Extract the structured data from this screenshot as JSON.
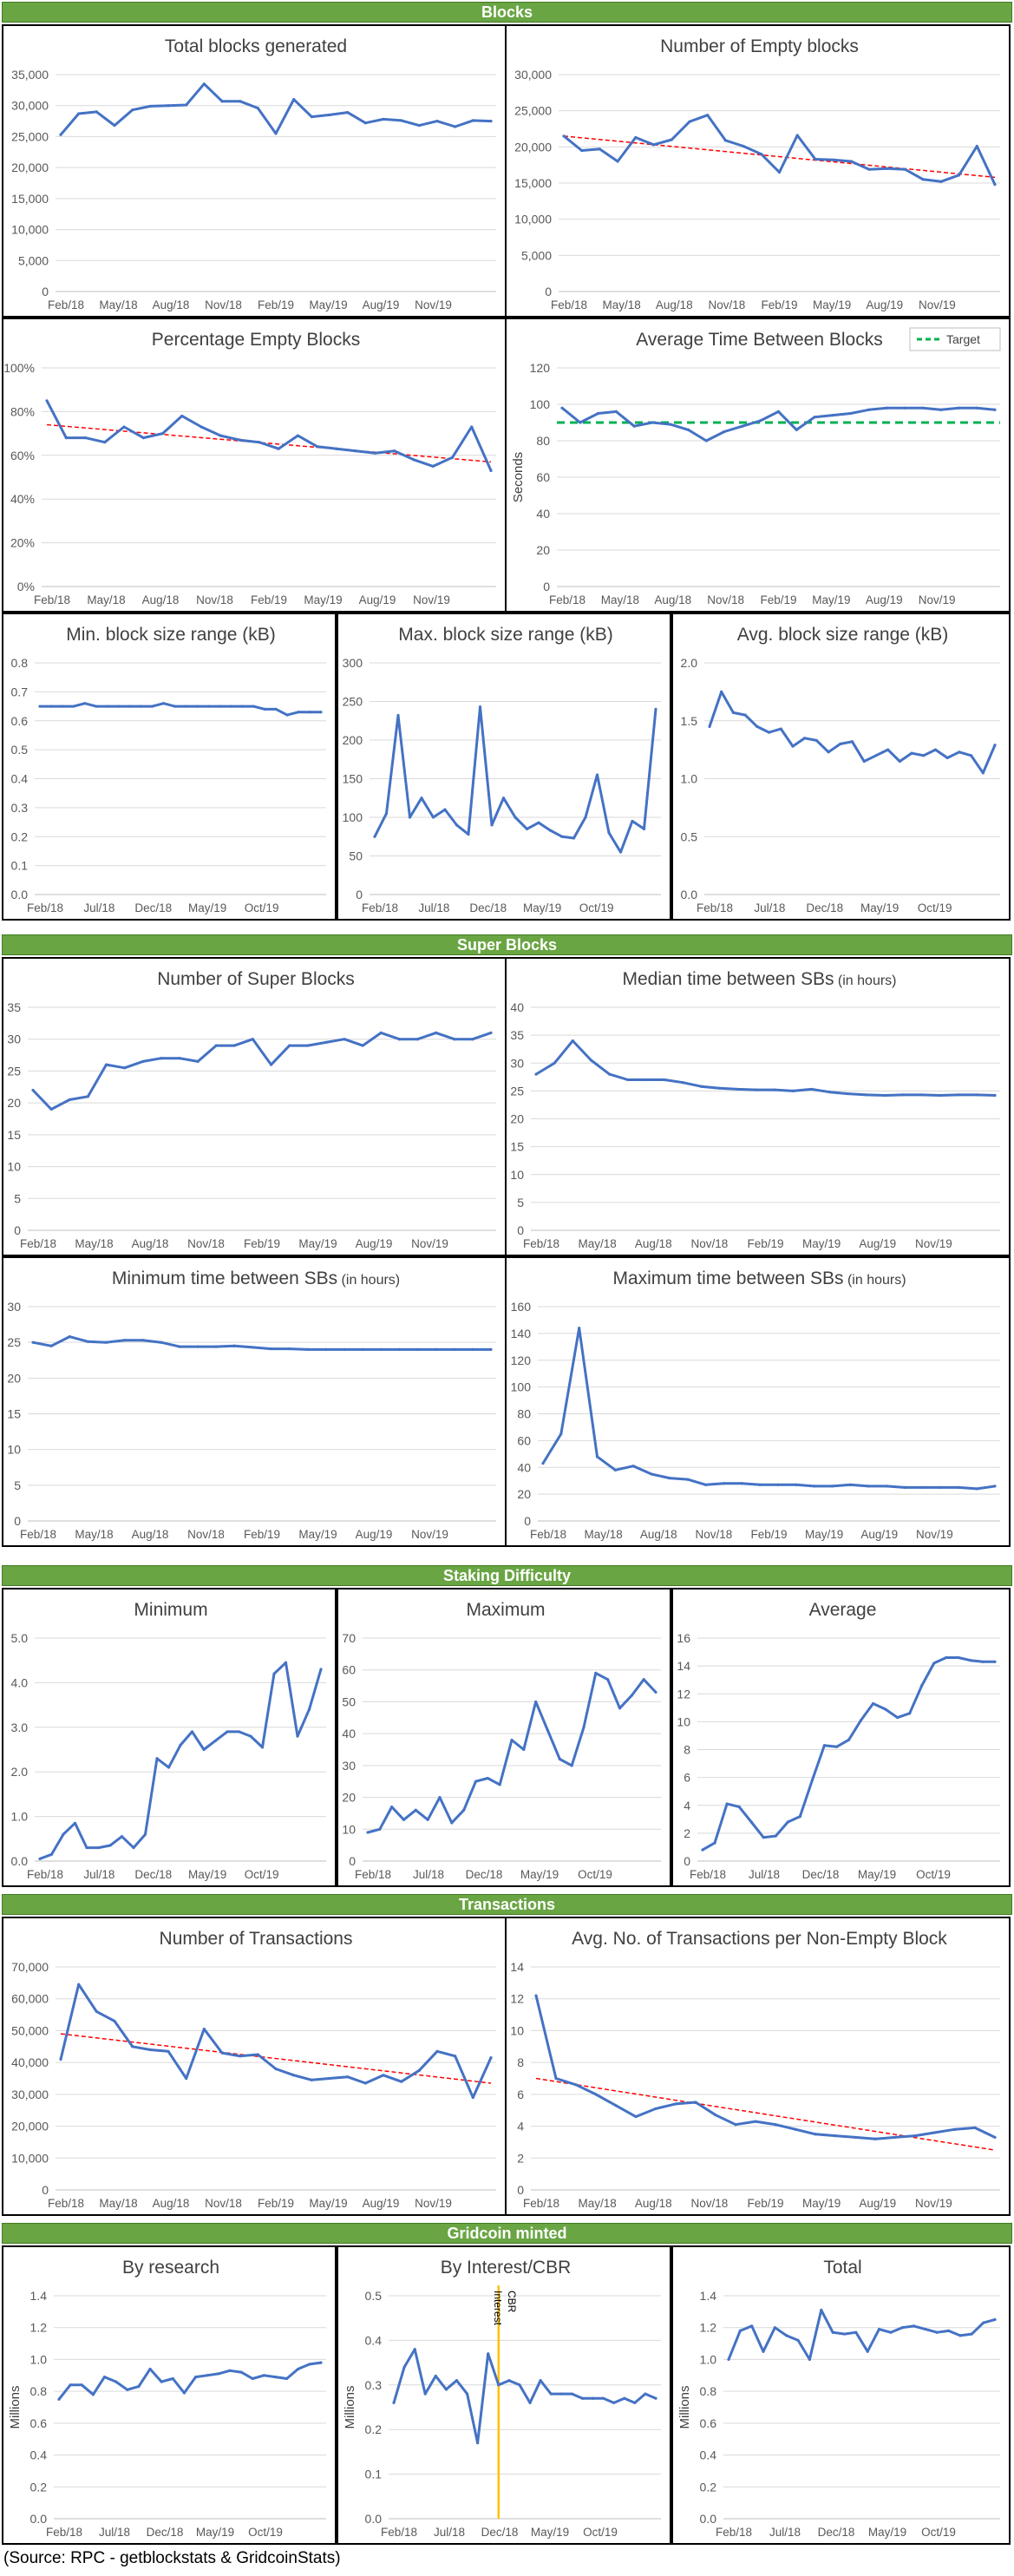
{
  "sections": {
    "blocks": "Blocks",
    "super_blocks": "Super Blocks",
    "staking": "Staking Difficulty",
    "transactions": "Transactions",
    "minted": "Gridcoin minted"
  },
  "source": "(Source: RPC - getblockstats & GridcoinStats)",
  "colors": {
    "line": "#4472c4",
    "trend": "#ff0000",
    "target": "#00b050",
    "marker": "#ffc000",
    "grid": "#d9d9d9",
    "header": "#6aa544"
  },
  "chart_data": [
    {
      "id": "total-blocks",
      "type": "line",
      "title": "Total blocks generated",
      "title_suffix": "",
      "xticks": [
        "Feb/18",
        "May/18",
        "Aug/18",
        "Nov/18",
        "Feb/19",
        "May/19",
        "Aug/19",
        "Nov/19"
      ],
      "ylim": [
        0,
        35000
      ],
      "yticks": [
        "0",
        "5,000",
        "10,000",
        "15,000",
        "20,000",
        "25,000",
        "30,000",
        "35,000"
      ],
      "series": [
        {
          "values": [
            25300,
            28700,
            29000,
            26800,
            29300,
            29900,
            30000,
            30100,
            33500,
            30700,
            30700,
            29600,
            25500,
            31000,
            28200,
            28500,
            28900,
            27200,
            27800,
            27600,
            26800,
            27500,
            26600,
            27600,
            27500
          ]
        }
      ]
    },
    {
      "id": "empty-blocks",
      "type": "line",
      "title": "Number of Empty blocks",
      "title_suffix": "",
      "xticks": [
        "Feb/18",
        "May/18",
        "Aug/18",
        "Nov/18",
        "Feb/19",
        "May/19",
        "Aug/19",
        "Nov/19"
      ],
      "ylim": [
        0,
        30000
      ],
      "yticks": [
        "0",
        "5,000",
        "10,000",
        "15,000",
        "20,000",
        "25,000",
        "30,000"
      ],
      "series": [
        {
          "values": [
            21500,
            19500,
            19700,
            18000,
            21300,
            20300,
            21000,
            23500,
            24400,
            20900,
            20100,
            19000,
            16500,
            21600,
            18300,
            18200,
            18000,
            16900,
            17000,
            16900,
            15500,
            15200,
            16100,
            20100,
            14800
          ]
        }
      ],
      "trend": [
        21500,
        15800
      ]
    },
    {
      "id": "pct-empty",
      "type": "line",
      "title": "Percentage Empty Blocks",
      "title_suffix": "",
      "xticks": [
        "Feb/18",
        "May/18",
        "Aug/18",
        "Nov/18",
        "Feb/19",
        "May/19",
        "Aug/19",
        "Nov/19"
      ],
      "ylim": [
        0,
        100
      ],
      "yticks": [
        "0%",
        "20%",
        "40%",
        "60%",
        "80%",
        "100%"
      ],
      "series": [
        {
          "values": [
            85,
            68,
            68,
            66,
            73,
            68,
            70,
            78,
            73,
            69,
            67,
            66,
            63,
            69,
            64,
            63,
            62,
            61,
            62,
            58,
            55,
            59,
            73,
            53
          ]
        }
      ],
      "trend": [
        74,
        57
      ]
    },
    {
      "id": "avg-time",
      "type": "line",
      "title": "Average Time Between Blocks",
      "title_suffix": "",
      "xticks": [
        "Feb/18",
        "May/18",
        "Aug/18",
        "Nov/18",
        "Feb/19",
        "May/19",
        "Aug/19",
        "Nov/19"
      ],
      "ylim": [
        0,
        120
      ],
      "yticks": [
        "0",
        "20",
        "40",
        "60",
        "80",
        "100",
        "120"
      ],
      "ylabel": "Seconds",
      "legend": "Target",
      "target": 90,
      "series": [
        {
          "values": [
            98,
            90,
            95,
            96,
            88,
            90,
            89,
            86,
            80,
            85,
            88,
            91,
            96,
            86,
            93,
            94,
            95,
            97,
            98,
            98,
            98,
            97,
            98,
            98,
            97
          ]
        }
      ]
    },
    {
      "id": "min-block-size",
      "type": "line",
      "title": "Min. block size range (kB)",
      "title_suffix": "",
      "xticks": [
        "Feb/18",
        "Jul/18",
        "Dec/18",
        "May/19",
        "Oct/19"
      ],
      "ylim": [
        0,
        0.8
      ],
      "yticks": [
        "0.0",
        "0.1",
        "0.2",
        "0.3",
        "0.4",
        "0.5",
        "0.6",
        "0.7",
        "0.8"
      ],
      "series": [
        {
          "values": [
            0.65,
            0.65,
            0.65,
            0.65,
            0.66,
            0.65,
            0.65,
            0.65,
            0.65,
            0.65,
            0.65,
            0.66,
            0.65,
            0.65,
            0.65,
            0.65,
            0.65,
            0.65,
            0.65,
            0.65,
            0.64,
            0.64,
            0.62,
            0.63,
            0.63,
            0.63
          ]
        }
      ]
    },
    {
      "id": "max-block-size",
      "type": "line",
      "title": "Max. block size range (kB)",
      "title_suffix": "",
      "xticks": [
        "Feb/18",
        "Jul/18",
        "Dec/18",
        "May/19",
        "Oct/19"
      ],
      "ylim": [
        0,
        300
      ],
      "yticks": [
        "0",
        "50",
        "100",
        "150",
        "200",
        "250",
        "300"
      ],
      "series": [
        {
          "values": [
            75,
            105,
            232,
            100,
            125,
            100,
            110,
            90,
            78,
            243,
            90,
            125,
            100,
            85,
            93,
            83,
            75,
            73,
            100,
            155,
            80,
            55,
            95,
            85,
            240
          ]
        }
      ]
    },
    {
      "id": "avg-block-size",
      "type": "line",
      "title": "Avg. block size range (kB)",
      "title_suffix": "",
      "xticks": [
        "Feb/18",
        "Jul/18",
        "Dec/18",
        "May/19",
        "Oct/19"
      ],
      "ylim": [
        0,
        2.0
      ],
      "yticks": [
        "0.0",
        "0.5",
        "1.0",
        "1.5",
        "2.0"
      ],
      "series": [
        {
          "values": [
            1.45,
            1.75,
            1.57,
            1.55,
            1.45,
            1.4,
            1.43,
            1.28,
            1.35,
            1.33,
            1.23,
            1.3,
            1.32,
            1.15,
            1.2,
            1.25,
            1.15,
            1.22,
            1.2,
            1.25,
            1.18,
            1.23,
            1.2,
            1.05,
            1.29
          ]
        }
      ]
    },
    {
      "id": "super-blocks",
      "type": "line",
      "title": "Number of Super Blocks",
      "title_suffix": "",
      "xticks": [
        "Feb/18",
        "May/18",
        "Aug/18",
        "Nov/18",
        "Feb/19",
        "May/19",
        "Aug/19",
        "Nov/19"
      ],
      "ylim": [
        0,
        35
      ],
      "yticks": [
        "0",
        "5",
        "10",
        "15",
        "20",
        "25",
        "30",
        "35"
      ],
      "series": [
        {
          "values": [
            22,
            19,
            20.5,
            21,
            26,
            25.5,
            26.5,
            27,
            27,
            26.5,
            29,
            29,
            30,
            26,
            29,
            29,
            29.5,
            30,
            29,
            31,
            30,
            30,
            31,
            30,
            30,
            31
          ]
        }
      ]
    },
    {
      "id": "median-sb",
      "type": "line",
      "title": "Median time between SBs",
      "title_suffix": "(in hours)",
      "xticks": [
        "Feb/18",
        "May/18",
        "Aug/18",
        "Nov/18",
        "Feb/19",
        "May/19",
        "Aug/19",
        "Nov/19"
      ],
      "ylim": [
        0,
        40
      ],
      "yticks": [
        "0",
        "5",
        "10",
        "15",
        "20",
        "25",
        "30",
        "35",
        "40"
      ],
      "series": [
        {
          "values": [
            28,
            30,
            34,
            30.5,
            28,
            27,
            27,
            27,
            26.5,
            25.8,
            25.5,
            25.3,
            25.2,
            25.2,
            25,
            25.3,
            24.8,
            24.5,
            24.3,
            24.2,
            24.3,
            24.3,
            24.2,
            24.3,
            24.3,
            24.2
          ]
        }
      ]
    },
    {
      "id": "minimum-sb",
      "type": "line",
      "title": "Minimum time between SBs",
      "title_suffix": "(in hours)",
      "xticks": [
        "Feb/18",
        "May/18",
        "Aug/18",
        "Nov/18",
        "Feb/19",
        "May/19",
        "Aug/19",
        "Nov/19"
      ],
      "ylim": [
        0,
        30
      ],
      "yticks": [
        "0",
        "5",
        "10",
        "15",
        "20",
        "25",
        "30"
      ],
      "series": [
        {
          "values": [
            25,
            24.5,
            25.8,
            25.1,
            25,
            25.3,
            25.3,
            25,
            24.4,
            24.4,
            24.4,
            24.5,
            24.3,
            24.1,
            24.1,
            24,
            24,
            24,
            24,
            24,
            24,
            24,
            24,
            24,
            24,
            24
          ]
        }
      ]
    },
    {
      "id": "maximum-sb",
      "type": "line",
      "title": "Maximum time  between SBs",
      "title_suffix": "(in hours)",
      "xticks": [
        "Feb/18",
        "May/18",
        "Aug/18",
        "Nov/18",
        "Feb/19",
        "May/19",
        "Aug/19",
        "Nov/19"
      ],
      "ylim": [
        0,
        160
      ],
      "yticks": [
        "0",
        "20",
        "40",
        "60",
        "80",
        "100",
        "120",
        "140",
        "160"
      ],
      "series": [
        {
          "values": [
            43,
            65,
            144,
            48,
            38,
            41,
            35,
            32,
            31,
            27,
            28,
            28,
            27,
            27,
            27,
            26,
            26,
            27,
            26,
            26,
            25,
            25,
            25,
            25,
            24,
            26
          ]
        }
      ]
    },
    {
      "id": "stake-minimum",
      "type": "line",
      "title": "Minimum",
      "title_suffix": "",
      "xticks": [
        "Feb/18",
        "Jul/18",
        "Dec/18",
        "May/19",
        "Oct/19"
      ],
      "ylim": [
        0,
        5
      ],
      "yticks": [
        "0.0",
        "1.0",
        "2.0",
        "3.0",
        "4.0",
        "5.0"
      ],
      "series": [
        {
          "values": [
            0.05,
            0.15,
            0.6,
            0.85,
            0.3,
            0.3,
            0.35,
            0.55,
            0.3,
            0.6,
            2.3,
            2.1,
            2.6,
            2.9,
            2.5,
            2.7,
            2.9,
            2.9,
            2.8,
            2.55,
            4.2,
            4.45,
            2.8,
            3.4,
            4.3
          ]
        }
      ]
    },
    {
      "id": "stake-maximum",
      "type": "line",
      "title": "Maximum",
      "title_suffix": "",
      "xticks": [
        "Feb/18",
        "Jul/18",
        "Dec/18",
        "May/19",
        "Oct/19"
      ],
      "ylim": [
        0,
        70
      ],
      "yticks": [
        "0",
        "10",
        "20",
        "30",
        "40",
        "50",
        "60",
        "70"
      ],
      "series": [
        {
          "values": [
            9,
            10,
            17,
            13,
            16,
            13,
            20,
            12,
            16,
            25,
            26,
            24,
            38,
            35,
            50,
            41,
            32,
            30,
            42,
            59,
            57,
            48,
            52,
            57,
            53
          ]
        }
      ]
    },
    {
      "id": "stake-average",
      "type": "line",
      "title": "Average",
      "title_suffix": "",
      "xticks": [
        "Feb/18",
        "Jul/18",
        "Dec/18",
        "May/19",
        "Oct/19"
      ],
      "ylim": [
        0,
        16
      ],
      "yticks": [
        "0",
        "2",
        "4",
        "6",
        "8",
        "10",
        "12",
        "14",
        "16"
      ],
      "series": [
        {
          "values": [
            0.8,
            1.3,
            4.1,
            3.9,
            2.8,
            1.7,
            1.8,
            2.8,
            3.2,
            5.8,
            8.3,
            8.2,
            8.7,
            10.1,
            11.3,
            10.9,
            10.3,
            10.6,
            12.6,
            14.2,
            14.6,
            14.6,
            14.4,
            14.3,
            14.3
          ]
        }
      ]
    },
    {
      "id": "num-transactions",
      "type": "line",
      "title": "Number of Transactions",
      "title_suffix": "",
      "xticks": [
        "Feb/18",
        "May/18",
        "Aug/18",
        "Nov/18",
        "Feb/19",
        "May/19",
        "Aug/19",
        "Nov/19"
      ],
      "ylim": [
        0,
        70000
      ],
      "yticks": [
        "0",
        "10,000",
        "20,000",
        "30,000",
        "40,000",
        "50,000",
        "60,000",
        "70,000"
      ],
      "series": [
        {
          "values": [
            41000,
            64500,
            56000,
            53000,
            45000,
            44000,
            43500,
            35000,
            50500,
            43000,
            42000,
            42500,
            38000,
            36000,
            34500,
            35000,
            35500,
            33500,
            36000,
            34000,
            37500,
            43500,
            42000,
            29000,
            41500
          ]
        }
      ],
      "trend": [
        49000,
        33500
      ]
    },
    {
      "id": "avg-tx-per-block",
      "type": "line",
      "title": "Avg. No. of Transactions per Non-Empty Block",
      "title_suffix": "",
      "xticks": [
        "Feb/18",
        "May/18",
        "Aug/18",
        "Nov/18",
        "Feb/19",
        "May/19",
        "Aug/19",
        "Nov/19"
      ],
      "ylim": [
        0,
        14
      ],
      "yticks": [
        "0",
        "2",
        "4",
        "6",
        "8",
        "10",
        "12",
        "14"
      ],
      "series": [
        {
          "values": [
            12.2,
            7.0,
            6.6,
            6.0,
            5.3,
            4.6,
            5.1,
            5.4,
            5.5,
            4.7,
            4.1,
            4.3,
            4.1,
            3.8,
            3.5,
            3.4,
            3.3,
            3.2,
            3.3,
            3.4,
            3.6,
            3.8,
            3.9,
            3.3
          ]
        }
      ],
      "trend": [
        7.0,
        2.5
      ]
    },
    {
      "id": "by-research",
      "type": "line",
      "title": "By research",
      "title_suffix": "",
      "xticks": [
        "Feb/18",
        "Jul/18",
        "Dec/18",
        "May/19",
        "Oct/19"
      ],
      "ylim": [
        0,
        1.4
      ],
      "yticks": [
        "0.0",
        "0.2",
        "0.4",
        "0.6",
        "0.8",
        "1.0",
        "1.2",
        "1.4"
      ],
      "ylabel": "Millions",
      "series": [
        {
          "values": [
            0.75,
            0.84,
            0.84,
            0.78,
            0.89,
            0.86,
            0.81,
            0.83,
            0.94,
            0.86,
            0.88,
            0.79,
            0.89,
            0.9,
            0.91,
            0.93,
            0.92,
            0.88,
            0.9,
            0.89,
            0.88,
            0.94,
            0.97,
            0.98
          ]
        }
      ]
    },
    {
      "id": "by-interest",
      "type": "line",
      "title": "By Interest/CBR",
      "title_suffix": "",
      "xticks": [
        "Feb/18",
        "Jul/18",
        "Dec/18",
        "May/19",
        "Oct/19"
      ],
      "ylim": [
        0,
        0.5
      ],
      "yticks": [
        "0.0",
        "0.1",
        "0.2",
        "0.3",
        "0.4",
        "0.5"
      ],
      "ylabel": "Millions",
      "marker_labels": [
        "Interest",
        "CBR"
      ],
      "marker_index": 10,
      "series": [
        {
          "values": [
            0.26,
            0.34,
            0.38,
            0.28,
            0.32,
            0.29,
            0.31,
            0.28,
            0.17,
            0.37,
            0.3,
            0.31,
            0.3,
            0.26,
            0.31,
            0.28,
            0.28,
            0.28,
            0.27,
            0.27,
            0.27,
            0.26,
            0.27,
            0.26,
            0.28,
            0.27
          ]
        }
      ]
    },
    {
      "id": "minted-total",
      "type": "line",
      "title": "Total",
      "title_suffix": "",
      "xticks": [
        "Feb/18",
        "Jul/18",
        "Dec/18",
        "May/19",
        "Oct/19"
      ],
      "ylim": [
        0,
        1.4
      ],
      "yticks": [
        "0.0",
        "0.2",
        "0.4",
        "0.6",
        "0.8",
        "1.0",
        "1.2",
        "1.4"
      ],
      "ylabel": "Millions",
      "series": [
        {
          "values": [
            1.0,
            1.18,
            1.21,
            1.05,
            1.2,
            1.15,
            1.12,
            1.0,
            1.31,
            1.17,
            1.16,
            1.17,
            1.05,
            1.19,
            1.17,
            1.2,
            1.21,
            1.19,
            1.17,
            1.18,
            1.15,
            1.16,
            1.23,
            1.25
          ]
        }
      ]
    }
  ]
}
